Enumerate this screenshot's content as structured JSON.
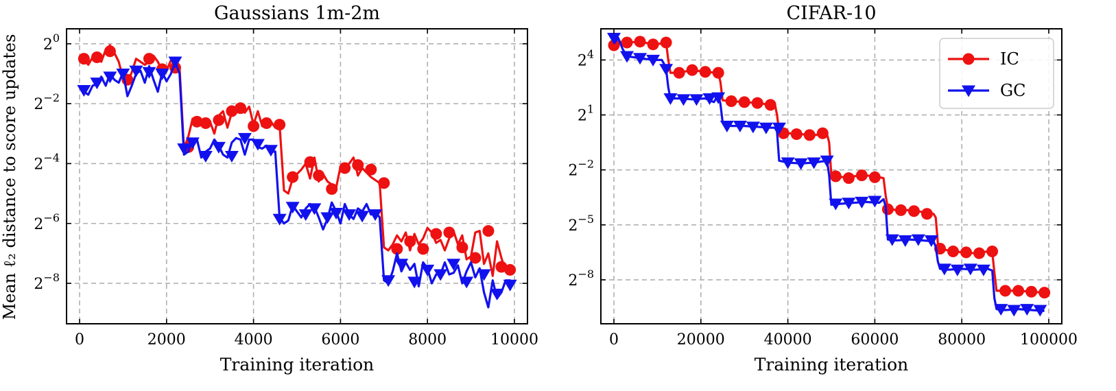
{
  "figure": {
    "ylabel": "Mean ℓ₂ distance to score updates",
    "legend": {
      "placement": "top-right",
      "entries": [
        "IC",
        "GC"
      ]
    }
  },
  "colors": {
    "IC": "#ee1111",
    "GC": "#1111ee",
    "grid": "#b0b0b0"
  },
  "chart_data": [
    {
      "type": "line",
      "title": "Gaussians 1m-2m",
      "xlabel": "Training iteration",
      "ylabel": "Mean ℓ₂ distance to score updates",
      "yscale": "log2",
      "grid": true,
      "xlim": [
        -300,
        10300
      ],
      "ylim_log2": [
        -9.35,
        0.5
      ],
      "xticks": [
        0,
        2000,
        4000,
        6000,
        8000,
        10000
      ],
      "yticks_log2": [
        0,
        -2,
        -4,
        -6,
        -8
      ],
      "ytick_labels": [
        "2^0",
        "2^-2",
        "2^-4",
        "2^-6",
        "2^-8"
      ],
      "series": [
        {
          "name": "IC",
          "x": [
            100,
            200,
            300,
            400,
            500,
            600,
            700,
            800,
            900,
            1000,
            1100,
            1200,
            1300,
            1400,
            1500,
            1600,
            1700,
            1800,
            1900,
            2000,
            2100,
            2200,
            2300,
            2400,
            2500,
            2600,
            2700,
            2800,
            2900,
            3000,
            3100,
            3200,
            3300,
            3400,
            3500,
            3600,
            3700,
            3800,
            3900,
            4000,
            4100,
            4200,
            4300,
            4400,
            4500,
            4600,
            4700,
            4800,
            4900,
            5000,
            5100,
            5200,
            5300,
            5400,
            5500,
            5600,
            5700,
            5800,
            5900,
            6000,
            6100,
            6200,
            6300,
            6400,
            6500,
            6600,
            6700,
            6800,
            6900,
            7000,
            7100,
            7200,
            7300,
            7400,
            7500,
            7600,
            7700,
            7800,
            7900,
            8000,
            8100,
            8200,
            8300,
            8400,
            8500,
            8600,
            8700,
            8800,
            8900,
            9000,
            9100,
            9200,
            9300,
            9400,
            9500,
            9600,
            9700,
            9800,
            9900,
            10000
          ],
          "values": [
            -0.5,
            -0.7,
            -0.45,
            -0.3,
            -0.6,
            -0.2,
            -0.05,
            -0.3,
            -0.6,
            -1.15,
            -1.3,
            -0.95,
            -0.5,
            -0.6,
            -0.7,
            -0.6,
            -0.4,
            -0.6,
            -0.9,
            -0.9,
            -0.55,
            -0.7,
            -0.8,
            -3.5,
            -3.1,
            -2.5,
            -2.6,
            -2.7,
            -2.55,
            -2.6,
            -3.0,
            -2.4,
            -2.25,
            -2.8,
            -2.3,
            -2.1,
            -2.15,
            -2.3,
            -2.1,
            -2.7,
            -2.25,
            -2.75,
            -2.7,
            -2.6,
            -2.8,
            -2.7,
            -4.9,
            -5.0,
            -4.5,
            -4.35,
            -4.2,
            -4.0,
            -4.5,
            -3.8,
            -4.6,
            -4.35,
            -4.6,
            -4.7,
            -4.8,
            -4.1,
            -4.1,
            -4.0,
            -3.8,
            -4.4,
            -4.15,
            -4.3,
            -4.45,
            -4.55,
            -4.65,
            -6.8,
            -6.9,
            -6.7,
            -6.4,
            -6.6,
            -6.3,
            -6.9,
            -6.35,
            -6.7,
            -6.5,
            -6.15,
            -6.3,
            -6.65,
            -6.55,
            -6.9,
            -6.5,
            -6.25,
            -6.7,
            -6.4,
            -7.2,
            -7.1,
            -6.3,
            -6.25,
            -7.35,
            -7.0,
            -7.75,
            -6.6,
            -7.15,
            -7.6,
            -7.5,
            -7.6
          ],
          "markers": {
            "x": [
              100,
              400,
              700,
              1100,
              1600,
              1900,
              2200,
              2500,
              2700,
              2900,
              3200,
              3500,
              3700,
              4000,
              4300,
              4600,
              4900,
              5300,
              5500,
              5800,
              6100,
              6400,
              6700,
              7000,
              7300,
              7600,
              7900,
              8200,
              8500,
              8800,
              9100,
              9400,
              9700,
              9900
            ],
            "values": [
              -0.5,
              -0.45,
              -0.25,
              -1.2,
              -0.5,
              -0.85,
              -0.8,
              -3.45,
              -2.6,
              -2.65,
              -2.55,
              -2.25,
              -2.15,
              -2.75,
              -2.65,
              -2.7,
              -4.45,
              -3.95,
              -4.4,
              -4.85,
              -4.15,
              -4.05,
              -4.2,
              -4.65,
              -6.85,
              -6.6,
              -6.85,
              -6.35,
              -6.3,
              -6.8,
              -7.15,
              -6.25,
              -7.45,
              -7.55
            ]
          }
        },
        {
          "name": "GC",
          "x": [
            100,
            200,
            300,
            400,
            500,
            600,
            700,
            800,
            900,
            1000,
            1100,
            1200,
            1300,
            1400,
            1500,
            1600,
            1700,
            1800,
            1900,
            2000,
            2100,
            2200,
            2300,
            2400,
            2500,
            2600,
            2700,
            2800,
            2900,
            3000,
            3100,
            3200,
            3300,
            3400,
            3500,
            3600,
            3700,
            3800,
            3900,
            4000,
            4100,
            4200,
            4300,
            4400,
            4500,
            4600,
            4700,
            4800,
            4900,
            5000,
            5100,
            5200,
            5300,
            5400,
            5500,
            5600,
            5700,
            5800,
            5900,
            6000,
            6100,
            6200,
            6300,
            6400,
            6500,
            6600,
            6700,
            6800,
            6900,
            7000,
            7100,
            7200,
            7300,
            7400,
            7500,
            7600,
            7700,
            7800,
            7900,
            8000,
            8100,
            8200,
            8300,
            8400,
            8500,
            8600,
            8700,
            8800,
            8900,
            9000,
            9100,
            9200,
            9300,
            9400,
            9500,
            9600,
            9700,
            9800,
            9900,
            10000
          ],
          "values": [
            -1.6,
            -1.7,
            -1.4,
            -1.35,
            -1.1,
            -1.4,
            -1.0,
            -1.2,
            -1.3,
            -0.95,
            -1.75,
            -1.4,
            -1.0,
            -0.9,
            -1.3,
            -0.75,
            -1.2,
            -1.6,
            -0.95,
            -1.25,
            -1.0,
            -0.6,
            -1.0,
            -3.7,
            -3.6,
            -3.2,
            -3.2,
            -3.8,
            -3.6,
            -3.5,
            -3.2,
            -3.4,
            -3.7,
            -3.8,
            -3.3,
            -3.15,
            -3.2,
            -3.7,
            -3.2,
            -3.2,
            -3.45,
            -3.5,
            -3.4,
            -3.6,
            -3.6,
            -5.8,
            -6.0,
            -5.9,
            -5.4,
            -5.6,
            -5.8,
            -5.5,
            -5.35,
            -5.45,
            -5.8,
            -6.2,
            -5.85,
            -5.3,
            -5.6,
            -6.0,
            -5.35,
            -5.7,
            -5.85,
            -5.5,
            -5.6,
            -5.35,
            -5.7,
            -5.6,
            -5.8,
            -7.9,
            -8.0,
            -7.6,
            -7.0,
            -7.6,
            -7.3,
            -7.55,
            -7.35,
            -8.1,
            -7.3,
            -7.5,
            -8.0,
            -7.7,
            -7.7,
            -7.3,
            -7.7,
            -7.65,
            -7.4,
            -8.0,
            -7.6,
            -7.3,
            -7.8,
            -7.5,
            -8.3,
            -8.8,
            -7.9,
            -8.5,
            -8.3,
            -7.9,
            -7.9,
            -8.0
          ],
          "markers": {
            "x": [
              100,
              400,
              700,
              1000,
              1300,
              1600,
              1900,
              2200,
              2400,
              2600,
              2900,
              3200,
              3500,
              3800,
              4100,
              4400,
              4600,
              4900,
              5200,
              5400,
              5700,
              5900,
              6200,
              6500,
              6800,
              7100,
              7400,
              7700,
              8000,
              8300,
              8600,
              8900,
              9300,
              9600,
              9900
            ],
            "values": [
              -1.55,
              -1.3,
              -1.1,
              -1.0,
              -0.9,
              -0.95,
              -1.0,
              -0.6,
              -3.5,
              -3.3,
              -3.75,
              -3.45,
              -3.75,
              -3.15,
              -3.35,
              -3.55,
              -5.85,
              -5.45,
              -5.7,
              -5.5,
              -5.8,
              -5.65,
              -5.7,
              -5.75,
              -5.7,
              -7.9,
              -7.35,
              -7.95,
              -7.55,
              -7.7,
              -7.35,
              -7.95,
              -7.7,
              -8.35,
              -8.05
            ]
          }
        }
      ]
    },
    {
      "type": "line",
      "title": "CIFAR-10",
      "xlabel": "Training iteration",
      "yscale": "log2",
      "grid": true,
      "xlim": [
        -3000,
        103000
      ],
      "ylim_log2": [
        -10.4,
        5.7
      ],
      "xticks": [
        0,
        20000,
        40000,
        60000,
        80000,
        100000
      ],
      "yticks_log2": [
        4,
        1,
        -2,
        -5,
        -8
      ],
      "ytick_labels": [
        "2^4",
        "2^1",
        "2^-2",
        "2^-5",
        "2^-8"
      ],
      "series": [
        {
          "name": "IC",
          "x": [
            0,
            1000,
            3000,
            6000,
            9000,
            11000,
            12000,
            12500,
            13000,
            15000,
            18000,
            21000,
            24000,
            24500,
            25000,
            27000,
            30000,
            33000,
            36000,
            37000,
            37500,
            38000,
            40000,
            43000,
            46000,
            49000,
            49500,
            50000,
            52000,
            55000,
            58000,
            61000,
            62000,
            62500,
            63000,
            65000,
            68000,
            71000,
            73500,
            74000,
            74500,
            75000,
            77000,
            80000,
            83000,
            86000,
            87000,
            87500,
            88000,
            90000,
            93000,
            96000,
            99000
          ],
          "values": [
            4.8,
            5.0,
            4.95,
            5.0,
            4.85,
            4.9,
            4.95,
            4.0,
            3.3,
            3.3,
            3.45,
            3.35,
            3.3,
            2.8,
            1.8,
            1.75,
            1.7,
            1.65,
            1.55,
            1.6,
            1.0,
            0.1,
            0.0,
            -0.05,
            -0.1,
            -0.05,
            -0.5,
            -2.3,
            -2.4,
            -2.35,
            -2.3,
            -2.4,
            -2.45,
            -3.4,
            -4.1,
            -4.2,
            -4.2,
            -4.3,
            -4.4,
            -4.6,
            -6.0,
            -6.3,
            -6.4,
            -6.5,
            -6.55,
            -6.45,
            -6.5,
            -7.6,
            -8.6,
            -8.6,
            -8.6,
            -8.65,
            -8.7
          ],
          "markers": {
            "x": [
              0,
              3000,
              6000,
              9000,
              12000,
              15000,
              18000,
              21000,
              24000,
              27000,
              30000,
              33000,
              36000,
              39000,
              42000,
              45000,
              48000,
              51000,
              54000,
              57000,
              60000,
              63000,
              66000,
              69000,
              72000,
              75000,
              78000,
              81000,
              84000,
              87000,
              90000,
              93000,
              96000,
              99000
            ],
            "values": [
              4.8,
              4.95,
              5.0,
              4.85,
              4.95,
              3.3,
              3.45,
              3.35,
              3.3,
              1.75,
              1.7,
              1.65,
              1.55,
              0.0,
              -0.05,
              -0.1,
              0.0,
              -2.35,
              -2.45,
              -2.3,
              -2.4,
              -4.15,
              -4.2,
              -4.25,
              -4.4,
              -6.3,
              -6.45,
              -6.5,
              -6.55,
              -6.45,
              -8.6,
              -8.6,
              -8.65,
              -8.7
            ]
          }
        },
        {
          "name": "GC",
          "x": [
            0,
            1000,
            2000,
            3000,
            6000,
            9000,
            11000,
            11500,
            12000,
            12500,
            13000,
            15000,
            18000,
            21000,
            23000,
            24000,
            24500,
            25000,
            27000,
            30000,
            33000,
            36000,
            37000,
            37500,
            38000,
            40000,
            43000,
            46000,
            49000,
            49500,
            50000,
            52000,
            55000,
            58000,
            61000,
            62000,
            62500,
            63000,
            65000,
            68000,
            71000,
            73500,
            74000,
            74500,
            75000,
            77000,
            80000,
            83000,
            86000,
            87000,
            87500,
            88000,
            90000,
            93000,
            96000,
            99000
          ],
          "values": [
            4.9,
            5.2,
            4.6,
            4.2,
            4.1,
            4.0,
            4.0,
            3.8,
            3.5,
            2.5,
            1.9,
            1.9,
            1.85,
            1.9,
            1.7,
            2.1,
            1.6,
            0.6,
            0.4,
            0.4,
            0.35,
            0.3,
            0.3,
            0.1,
            -1.5,
            -1.6,
            -1.65,
            -1.6,
            -1.5,
            -2.3,
            -3.9,
            -3.85,
            -3.8,
            -3.75,
            -3.8,
            -3.6,
            -4.0,
            -5.8,
            -5.85,
            -5.8,
            -5.85,
            -5.9,
            -6.2,
            -7.0,
            -7.4,
            -7.45,
            -7.4,
            -7.45,
            -7.4,
            -7.5,
            -9.0,
            -9.6,
            -9.65,
            -9.6,
            -9.65,
            -9.7
          ],
          "markers": {
            "x": [
              0,
              3000,
              6000,
              9000,
              12000,
              13000,
              16000,
              19000,
              22000,
              24000,
              26000,
              29000,
              32000,
              35000,
              38000,
              40000,
              43000,
              46000,
              49000,
              51000,
              54000,
              57000,
              60000,
              64000,
              67000,
              70000,
              73000,
              76000,
              79000,
              82000,
              85000,
              89000,
              92000,
              95000,
              98000
            ],
            "values": [
              5.2,
              4.2,
              4.1,
              4.0,
              3.5,
              1.9,
              1.85,
              1.85,
              1.9,
              1.95,
              0.4,
              0.4,
              0.35,
              0.3,
              0.3,
              -1.6,
              -1.65,
              -1.6,
              -1.5,
              -3.85,
              -3.8,
              -3.75,
              -3.7,
              -5.8,
              -5.85,
              -5.8,
              -5.85,
              -7.4,
              -7.45,
              -7.4,
              -7.45,
              -9.6,
              -9.65,
              -9.6,
              -9.65
            ]
          }
        }
      ]
    }
  ]
}
